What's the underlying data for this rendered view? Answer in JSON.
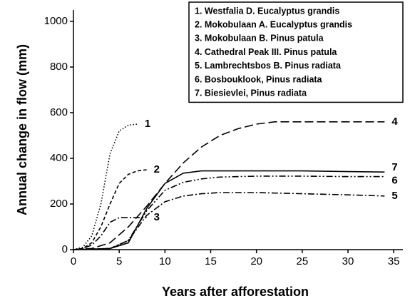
{
  "chart_data": {
    "type": "line",
    "xlabel": "Years after afforestation",
    "ylabel": "Annual change in flow (mm)",
    "xlim": [
      0,
      36
    ],
    "ylim": [
      0,
      1050
    ],
    "xticks": [
      0,
      5,
      10,
      15,
      20,
      25,
      30,
      35
    ],
    "yticks": [
      0,
      200,
      400,
      600,
      800,
      1000
    ],
    "legend": "upper right",
    "series": [
      {
        "name": "1.  Westfalia D. Eucalyptus grandis",
        "label": "1",
        "color": "#000000",
        "dash": "dotted",
        "x": [
          0,
          1,
          2,
          3,
          4,
          5,
          6,
          7
        ],
        "values": [
          0,
          10,
          60,
          200,
          420,
          520,
          545,
          550
        ]
      },
      {
        "name": "2.  Mokobulaan A. Eucalyptus grandis",
        "label": "2",
        "color": "#000000",
        "dash": "dashed",
        "x": [
          0,
          1,
          2,
          3,
          4,
          5,
          6,
          7,
          8
        ],
        "values": [
          0,
          5,
          30,
          100,
          200,
          290,
          330,
          345,
          350
        ]
      },
      {
        "name": "3.  Mokobulaan B. Pinus patula",
        "label": "3",
        "color": "#000000",
        "dash": "dashdot",
        "x": [
          0,
          1,
          2,
          3,
          4,
          5,
          6,
          7,
          8
        ],
        "values": [
          0,
          5,
          20,
          60,
          120,
          140,
          140,
          140,
          140
        ]
      },
      {
        "name": "4.  Cathedral Peak III. Pinus patula",
        "label": "4",
        "color": "#000000",
        "dash": "longdash",
        "x": [
          0,
          2,
          4,
          6,
          8,
          10,
          12,
          14,
          16,
          18,
          20,
          22,
          26,
          30,
          34
        ],
        "values": [
          0,
          5,
          30,
          100,
          190,
          290,
          380,
          450,
          500,
          530,
          550,
          560,
          560,
          560,
          560
        ]
      },
      {
        "name": "5.  Lambrechtsbos B. Pinus radiata",
        "label": "5",
        "color": "#000000",
        "dash": "dashdot",
        "x": [
          0,
          4,
          6,
          8,
          10,
          12,
          14,
          16,
          20,
          25,
          30,
          34
        ],
        "values": [
          0,
          5,
          40,
          150,
          210,
          235,
          245,
          250,
          250,
          245,
          240,
          235
        ]
      },
      {
        "name": "6.  Bosbouklook, Pinus radiata",
        "label": "6",
        "color": "#000000",
        "dash": "dashdotdot",
        "x": [
          0,
          4,
          6,
          8,
          10,
          12,
          14,
          16,
          20,
          25,
          30,
          34
        ],
        "values": [
          0,
          5,
          40,
          170,
          260,
          295,
          310,
          318,
          322,
          322,
          320,
          320
        ]
      },
      {
        "name": "7.  Biesievlei, Pinus radiata",
        "label": "7",
        "color": "#000000",
        "dash": "solid",
        "x": [
          0,
          4,
          6,
          8,
          10,
          12,
          14,
          16,
          20,
          25,
          30,
          34
        ],
        "values": [
          0,
          5,
          30,
          180,
          290,
          335,
          345,
          345,
          345,
          345,
          342,
          340
        ]
      }
    ]
  }
}
